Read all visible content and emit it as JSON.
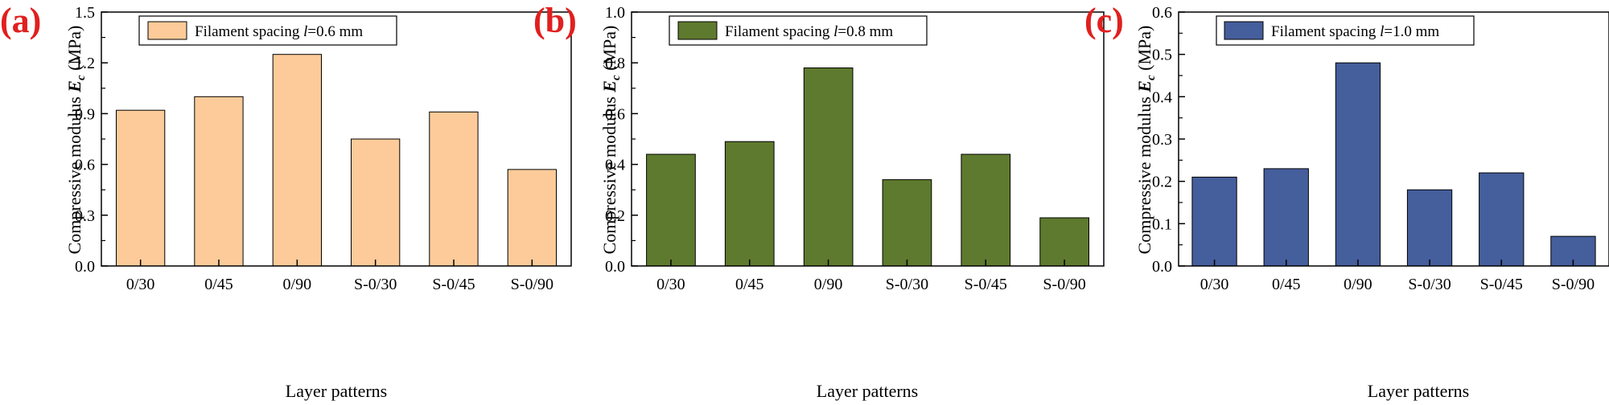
{
  "panels": [
    {
      "label": "(a)",
      "legend": "Filament spacing l=0.6 mm",
      "legend_prefix": "Filament spacing ",
      "legend_var": "l",
      "legend_suffix": "=0.6 mm",
      "ylabel_prefix": "Compressive modulus ",
      "ylabel_var": "E",
      "ylabel_sub": "c",
      "ylabel_suffix": " (MPa)",
      "xlabel": "Layer patterns",
      "color": "#FCCB99",
      "yticks": [
        "0.0",
        "0.3",
        "0.6",
        "0.9",
        "1.2",
        "1.5"
      ]
    },
    {
      "label": "(b)",
      "legend": "Filament spacing l=0.8 mm",
      "legend_prefix": "Filament spacing ",
      "legend_var": "l",
      "legend_suffix": "=0.8 mm",
      "ylabel_prefix": "Compressive modulus ",
      "ylabel_var": "E",
      "ylabel_sub": "c",
      "ylabel_suffix": " (MPa)",
      "xlabel": "Layer patterns",
      "color": "#5E7A2E",
      "yticks": [
        "0.0",
        "0.2",
        "0.4",
        "0.6",
        "0.8",
        "1.0"
      ]
    },
    {
      "label": "(c)",
      "legend": "Filament spacing l=1.0 mm",
      "legend_prefix": "Filament spacing ",
      "legend_var": "l",
      "legend_suffix": "=1.0 mm",
      "ylabel_prefix": "Compressive modulus ",
      "ylabel_var": "E",
      "ylabel_sub": "c",
      "ylabel_suffix": " (MPa)",
      "xlabel": "Layer patterns",
      "color": "#455E9C",
      "yticks": [
        "0.0",
        "0.1",
        "0.2",
        "0.3",
        "0.4",
        "0.5",
        "0.6"
      ]
    }
  ],
  "label_color": "#E0201F",
  "chart_data": [
    {
      "type": "bar",
      "categories": [
        "0/30",
        "0/45",
        "0/90",
        "S-0/30",
        "S-0/45",
        "S-0/90"
      ],
      "series": [
        {
          "name": "Filament spacing l=0.6 mm",
          "values": [
            0.92,
            1.0,
            1.25,
            0.75,
            0.91,
            0.57
          ]
        }
      ],
      "xlabel": "Layer patterns",
      "ylabel": "Compressive modulus Ec (MPa)",
      "ylim": [
        0,
        1.5
      ],
      "legend": "top-left",
      "grid": false
    },
    {
      "type": "bar",
      "categories": [
        "0/30",
        "0/45",
        "0/90",
        "S-0/30",
        "S-0/45",
        "S-0/90"
      ],
      "series": [
        {
          "name": "Filament spacing l=0.8 mm",
          "values": [
            0.44,
            0.49,
            0.78,
            0.34,
            0.44,
            0.19
          ]
        }
      ],
      "xlabel": "Layer patterns",
      "ylabel": "Compressive modulus Ec (MPa)",
      "ylim": [
        0,
        1.0
      ],
      "legend": "top-left",
      "grid": false
    },
    {
      "type": "bar",
      "categories": [
        "0/30",
        "0/45",
        "0/90",
        "S-0/30",
        "S-0/45",
        "S-0/90"
      ],
      "series": [
        {
          "name": "Filament spacing l=1.0 mm",
          "values": [
            0.21,
            0.23,
            0.48,
            0.18,
            0.22,
            0.07
          ]
        }
      ],
      "xlabel": "Layer patterns",
      "ylabel": "Compressive modulus Ec (MPa)",
      "ylim": [
        0,
        0.6
      ],
      "legend": "top-left",
      "grid": false
    }
  ]
}
